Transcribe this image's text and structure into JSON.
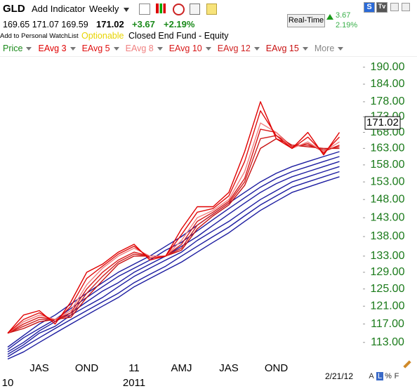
{
  "header": {
    "symbol": "GLD",
    "add_indicator": "Add Indicator",
    "interval": "Weekly",
    "quote": "169.65 171.07 169.59",
    "last": "171.02",
    "change": "+3.67",
    "change_pct": "+2.19%",
    "watchlist": "Add to Personal WatchList",
    "optionable": "Optionable",
    "fund_type": "Closed End Fund - Equity",
    "realtime": "Real-Time",
    "rt_change": "3.67",
    "rt_pct": "2.19%",
    "price": "Price",
    "more": "More",
    "date": "2/21/12",
    "buttons": [
      "A",
      "L",
      "%",
      "F"
    ],
    "s": "S",
    "tv": "Tv"
  },
  "chart_data": {
    "type": "line",
    "yscale": "log",
    "categories": [
      null,
      null,
      "JAS",
      null,
      null,
      "OND",
      null,
      null,
      "11",
      null,
      null,
      "AMJ",
      null,
      null,
      "JAS",
      null,
      null,
      "OND",
      null,
      null,
      null,
      null
    ],
    "category_years": [
      "10",
      null,
      null,
      null,
      null,
      null,
      null,
      null,
      "2011",
      null,
      null,
      null,
      null,
      null,
      null,
      null,
      null,
      null,
      null,
      null,
      null,
      null
    ],
    "ylim": [
      109,
      194
    ],
    "yticks": [
      {
        "value": 190,
        "label": "190.00"
      },
      {
        "value": 184,
        "label": "184.00"
      },
      {
        "value": 178,
        "label": "178.00"
      },
      {
        "value": 173,
        "label": "173.00"
      },
      {
        "value": 168,
        "label": "168.00"
      },
      {
        "value": 163,
        "label": "163.00"
      },
      {
        "value": 158,
        "label": "158.00"
      },
      {
        "value": 153,
        "label": "153.00"
      },
      {
        "value": 148,
        "label": "148.00"
      },
      {
        "value": 143,
        "label": "143.00"
      },
      {
        "value": 138,
        "label": "138.00"
      },
      {
        "value": 133,
        "label": "133.00"
      },
      {
        "value": 129,
        "label": "129.00"
      },
      {
        "value": 125,
        "label": "125.00"
      },
      {
        "value": 121,
        "label": "121.00"
      },
      {
        "value": 117,
        "label": "117.00"
      },
      {
        "value": 113,
        "label": "113.00"
      }
    ],
    "last_value": 171.02,
    "series": [
      {
        "name": "EAvg 3",
        "color": "#e00000",
        "values": [
          115,
          119,
          120,
          117,
          122,
          129,
          131,
          134,
          136,
          132,
          133,
          140,
          146,
          146,
          150,
          162,
          178,
          166,
          163,
          168,
          161,
          168
        ]
      },
      {
        "name": "EAvg 5",
        "color": "#e01010",
        "values": [
          115,
          118,
          119.5,
          117.5,
          121,
          127.5,
          130.5,
          133.5,
          135.5,
          132.5,
          133,
          138.5,
          144.5,
          145.5,
          149,
          159,
          175,
          167,
          163,
          166.5,
          161.5,
          166.5
        ]
      },
      {
        "name": "EAvg 8",
        "color": "#f08080",
        "values": [
          115,
          117.5,
          119,
          118,
          120,
          126,
          130,
          133,
          135,
          133,
          133,
          137,
          143,
          145,
          148,
          156,
          171,
          168,
          163,
          165,
          162,
          165
        ]
      },
      {
        "name": "EAvg 10",
        "color": "#d81818",
        "values": [
          115,
          117,
          118.5,
          118,
          119.5,
          125,
          129,
          132,
          134,
          133,
          133,
          136,
          142,
          144.5,
          147.5,
          154,
          169,
          168,
          163.5,
          164.5,
          162,
          164
        ]
      },
      {
        "name": "EAvg 12",
        "color": "#d02020",
        "values": [
          115,
          116.5,
          118,
          118,
          119,
          124,
          128,
          131.5,
          133.5,
          133,
          133,
          135,
          141,
          144,
          147,
          153,
          166,
          167,
          164,
          164,
          162.5,
          163.5
        ]
      },
      {
        "name": "EAvg 15",
        "color": "#c81010",
        "values": [
          115,
          116,
          117.5,
          118,
          118.5,
          123,
          127,
          131,
          133,
          133,
          133,
          134.5,
          140,
          143.5,
          146.5,
          152,
          163,
          166,
          164,
          163.5,
          163,
          163
        ]
      },
      {
        "color": "#1c1ca0",
        "values": [
          112,
          114.5,
          117,
          119,
          121.5,
          124,
          126.5,
          129,
          131,
          133,
          135.5,
          138,
          141,
          144,
          147,
          150,
          153,
          155.5,
          157.5,
          159,
          160.5,
          162
        ]
      },
      {
        "color": "#1c1ca0",
        "values": [
          111.5,
          114,
          116,
          118,
          120.5,
          123,
          125.5,
          128,
          130,
          132,
          134.5,
          136.5,
          139.5,
          142.5,
          145.5,
          148.5,
          151.5,
          154,
          156,
          157.5,
          159,
          160.5
        ]
      },
      {
        "color": "#1c1ca0",
        "values": [
          111,
          113,
          115.5,
          117.5,
          119.5,
          122,
          124.5,
          126.5,
          129,
          131,
          133,
          135.5,
          138,
          141,
          144,
          147,
          150,
          152.5,
          154.5,
          156,
          157.5,
          159
        ]
      },
      {
        "color": "#1c1ca0",
        "values": [
          110.5,
          112.5,
          115,
          116.5,
          119,
          121,
          123,
          125.5,
          128,
          130,
          132,
          134,
          137,
          139.5,
          142,
          145,
          148,
          150.5,
          153,
          154.5,
          156,
          157.5
        ]
      },
      {
        "color": "#1c1ca0",
        "values": [
          110,
          112,
          114,
          116,
          118,
          120,
          122,
          124,
          126.5,
          128.5,
          130.5,
          133,
          135.5,
          138,
          140.5,
          143.5,
          146.5,
          149,
          151.5,
          153,
          154.5,
          156
        ]
      },
      {
        "color": "#1c1ca0",
        "values": [
          109.5,
          111,
          113,
          115,
          117,
          119,
          121,
          123,
          125.5,
          127.5,
          129.5,
          131.5,
          134,
          136.5,
          139,
          142,
          145,
          147.5,
          150,
          151.5,
          153,
          154.5
        ]
      }
    ]
  }
}
